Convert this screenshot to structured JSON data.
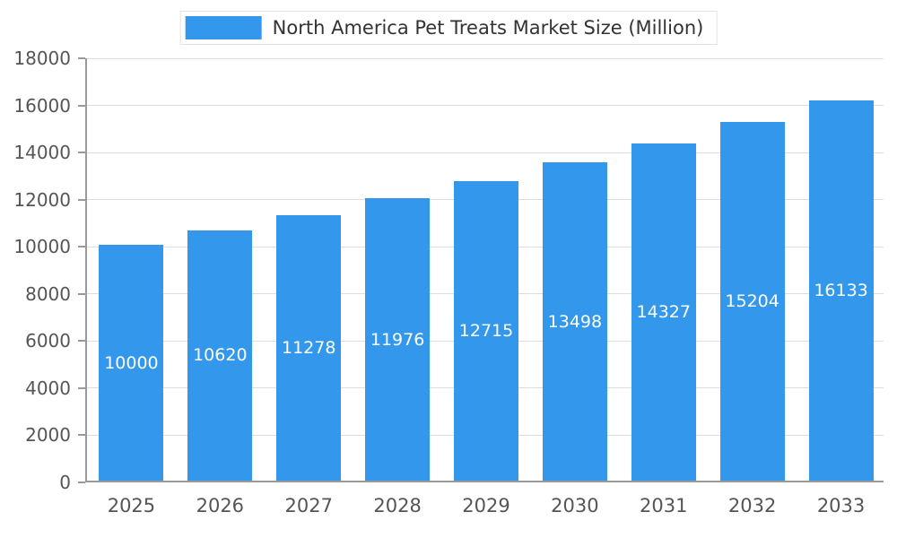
{
  "chart_data": {
    "type": "bar",
    "title": "North America Pet Treats Market Size (Million)",
    "categories": [
      "2025",
      "2026",
      "2027",
      "2028",
      "2029",
      "2030",
      "2031",
      "2032",
      "2033"
    ],
    "values": [
      10000,
      10620,
      11278,
      11976,
      12715,
      13498,
      14327,
      15204,
      16133
    ],
    "xlabel": "",
    "ylabel": "",
    "ylim": [
      0,
      18000
    ],
    "ytick_step": 2000,
    "ytick_labels": [
      "0",
      "2000",
      "4000",
      "6000",
      "8000",
      "10000",
      "12000",
      "14000",
      "16000",
      "18000"
    ],
    "grid": "horizontal",
    "legend_position": "top",
    "legend_label": "North America Pet Treats Market Size (Million)",
    "bar_color": "#3398EC",
    "value_label_color": "#ffffff",
    "axis_line_color": "#999999",
    "grid_color": "#dddddd",
    "tick_label_color": "#555555"
  }
}
